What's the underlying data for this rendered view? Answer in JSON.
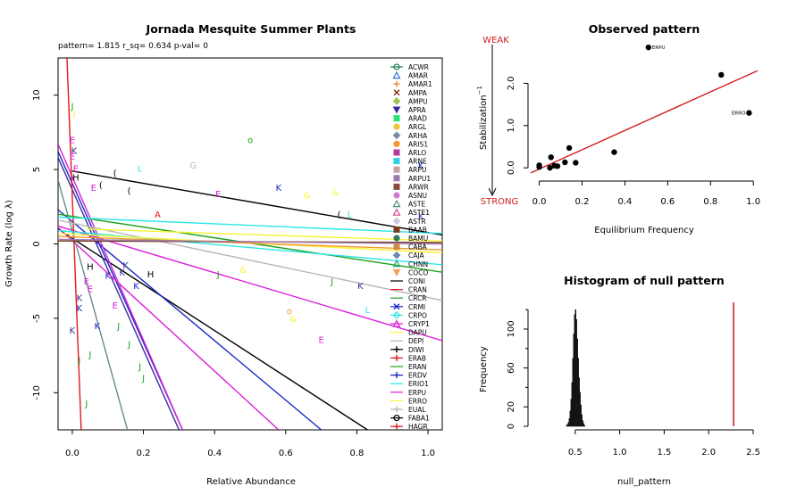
{
  "chart_data": [
    {
      "id": "main",
      "type": "scatter",
      "title": "Jornada Mesquite Summer Plants",
      "subtitle": "pattern= 1.815 r_sq= 0.634 p-val= 0",
      "xlabel": "Relative Abundance",
      "ylabel": "Growth Rate (log  λ)",
      "xlim": [
        -0.04,
        1.04
      ],
      "ylim": [
        -12.5,
        12.5
      ],
      "xticks": [
        "0.0",
        "0.2",
        "0.4",
        "0.6",
        "0.8",
        "1.0"
      ],
      "yticks": [
        "-10",
        "-5",
        "0",
        "5",
        "10"
      ],
      "legend": {
        "placement": "top-right",
        "entries": [
          {
            "label": "ACWR",
            "color": "#1b7a4b",
            "marker": "circle-line"
          },
          {
            "label": "AMAR",
            "color": "#2f6fd8",
            "marker": "triangle"
          },
          {
            "label": "AMAR1",
            "color": "#e8873a",
            "marker": "plus"
          },
          {
            "label": "AMPA",
            "color": "#8b2c10",
            "marker": "x"
          },
          {
            "label": "AMPU",
            "color": "#9cc64a",
            "marker": "diamond"
          },
          {
            "label": "APRA",
            "color": "#3c2a9a",
            "marker": "tri-down"
          },
          {
            "label": "ARAD",
            "color": "#29e07a",
            "marker": "square"
          },
          {
            "label": "ARGL",
            "color": "#f3c23c",
            "marker": "circle"
          },
          {
            "label": "ARHA",
            "color": "#7a8a9a",
            "marker": "diamond"
          },
          {
            "label": "ARIS1",
            "color": "#f29a2e",
            "marker": "circle"
          },
          {
            "label": "ARLO",
            "color": "#b93a9e",
            "marker": "square"
          },
          {
            "label": "ARNE",
            "color": "#2bd0e6",
            "marker": "square"
          },
          {
            "label": "ARPU",
            "color": "#c9a0a0",
            "marker": "square"
          },
          {
            "label": "ARPU1",
            "color": "#9a7ab0",
            "marker": "square"
          },
          {
            "label": "ARWR",
            "color": "#8b4b3a",
            "marker": "square"
          },
          {
            "label": "ASNU",
            "color": "#d77ad0",
            "marker": "circle"
          },
          {
            "label": "ASTE",
            "color": "#4a8c7a",
            "marker": "triangle"
          },
          {
            "label": "ASTE1",
            "color": "#d6488c",
            "marker": "triangle"
          },
          {
            "label": "ASTR",
            "color": "#cfc8e8",
            "marker": "diamond"
          },
          {
            "label": "BAAB",
            "color": "#7a3b1a",
            "marker": "square"
          },
          {
            "label": "BAMU",
            "color": "#2e7a5a",
            "marker": "circle"
          },
          {
            "label": "CABA",
            "color": "#d2874a",
            "marker": "square"
          },
          {
            "label": "CAJA",
            "color": "#6a8ab0",
            "marker": "diamond"
          },
          {
            "label": "CHNN",
            "color": "#2aa67a",
            "marker": "triangle"
          },
          {
            "label": "COCO",
            "color": "#f2a25a",
            "marker": "tri-down"
          },
          {
            "label": "CONI",
            "color": "#000000",
            "marker": "line"
          },
          {
            "label": "CRAN",
            "color": "#e0191a",
            "marker": "line"
          },
          {
            "label": "CRCR",
            "color": "#1aa01a",
            "marker": "line"
          },
          {
            "label": "CRMI",
            "color": "#1a28c8",
            "marker": "x-line"
          },
          {
            "label": "CRPO",
            "color": "#2ae6e6",
            "marker": "diamond-line"
          },
          {
            "label": "CRYP1",
            "color": "#d920d9",
            "marker": "tri-line"
          },
          {
            "label": "DAPU",
            "color": "#f5f53a",
            "marker": "line"
          },
          {
            "label": "DEPI",
            "color": "#b8b8b8",
            "marker": "line"
          },
          {
            "label": "DIWI",
            "color": "#000000",
            "marker": "plus-line"
          },
          {
            "label": "ERAB",
            "color": "#e0191a",
            "marker": "plus-line"
          },
          {
            "label": "ERAN",
            "color": "#1aa01a",
            "marker": "line"
          },
          {
            "label": "ERDV",
            "color": "#1a28c8",
            "marker": "plus-line"
          },
          {
            "label": "ERIO1",
            "color": "#2ae6e6",
            "marker": "line"
          },
          {
            "label": "ERPU",
            "color": "#d920d9",
            "marker": "line"
          },
          {
            "label": "ERRO",
            "color": "#f5f53a",
            "marker": "line"
          },
          {
            "label": "EUAL",
            "color": "#b8b8b8",
            "marker": "plus-line"
          },
          {
            "label": "FABA1",
            "color": "#000000",
            "marker": "circle-line"
          },
          {
            "label": "HAGR",
            "color": "#e0191a",
            "marker": "plus-line"
          }
        ]
      },
      "fit_lines": [
        {
          "color": "#000000",
          "points": [
            [
              0,
              4.9
            ],
            [
              1.04,
              0.6
            ]
          ]
        },
        {
          "color": "#000000",
          "points": [
            [
              -0.04,
              1.0
            ],
            [
              0.83,
              -12.5
            ]
          ]
        },
        {
          "color": "#1a28c8",
          "points": [
            [
              -0.04,
              2.3
            ],
            [
              0.7,
              -12.5
            ]
          ]
        },
        {
          "color": "#1a28c8",
          "points": [
            [
              -0.04,
              6.2
            ],
            [
              0.31,
              -12.5
            ]
          ]
        },
        {
          "color": "#3c2a9a",
          "points": [
            [
              -0.04,
              5.8
            ],
            [
              0.3,
              -12.5
            ]
          ]
        },
        {
          "color": "#d920d9",
          "points": [
            [
              -0.04,
              6.7
            ],
            [
              0.31,
              -12.5
            ]
          ]
        },
        {
          "color": "#d920d9",
          "points": [
            [
              -0.04,
              1.1
            ],
            [
              0.58,
              -12.5
            ]
          ]
        },
        {
          "color": "#d920d9",
          "points": [
            [
              -0.04,
              1.2
            ],
            [
              1.04,
              -6.5
            ]
          ]
        },
        {
          "color": "#e0191a",
          "points": [
            [
              -0.015,
              12.5
            ],
            [
              0.025,
              -12.5
            ]
          ]
        },
        {
          "color": "#6a8a8a",
          "points": [
            [
              -0.04,
              4.3
            ],
            [
              0.155,
              -12.5
            ]
          ]
        },
        {
          "color": "#b8b8b8",
          "points": [
            [
              -0.04,
              1.6
            ],
            [
              1.04,
              -3.8
            ]
          ]
        },
        {
          "color": "#1aa01a",
          "points": [
            [
              -0.04,
              2.0
            ],
            [
              1.04,
              -1.9
            ]
          ]
        },
        {
          "color": "#2ae6e6",
          "points": [
            [
              -0.04,
              1.8
            ],
            [
              1.04,
              0.7
            ]
          ]
        },
        {
          "color": "#2ae6e6",
          "points": [
            [
              -0.04,
              0.9
            ],
            [
              1.04,
              -1.4
            ]
          ]
        },
        {
          "color": "#f5f53a",
          "points": [
            [
              -0.04,
              0.7
            ],
            [
              1.04,
              -0.6
            ]
          ]
        },
        {
          "color": "#f29a2e",
          "points": [
            [
              -0.04,
              0.5
            ],
            [
              1.04,
              -0.4
            ]
          ]
        },
        {
          "color": "#7a3b1a",
          "points": [
            [
              -0.04,
              0.2
            ],
            [
              1.04,
              0.1
            ]
          ]
        },
        {
          "color": "#9a7ab0",
          "points": [
            [
              -0.04,
              0.3
            ],
            [
              1.04,
              0.0
            ]
          ]
        },
        {
          "color": "#f5f53a",
          "points": [
            [
              0.04,
              1.0
            ],
            [
              1.04,
              0.2
            ]
          ]
        }
      ],
      "points": [
        {
          "x": 0.0,
          "y": 9.3,
          "label": "J",
          "color": "#1aa01a"
        },
        {
          "x": 0.005,
          "y": 8.8,
          "label": "J",
          "color": "#f5f53a"
        },
        {
          "x": 0.0,
          "y": 7.0,
          "label": "E",
          "color": "#d920d9"
        },
        {
          "x": 0.005,
          "y": 6.3,
          "label": "K",
          "color": "#3c2a9a"
        },
        {
          "x": 0.0,
          "y": 5.9,
          "label": "E",
          "color": "#d920d9"
        },
        {
          "x": 0.01,
          "y": 5.1,
          "label": "E",
          "color": "#d920d9"
        },
        {
          "x": 0.01,
          "y": 4.5,
          "label": "H",
          "color": "#000000"
        },
        {
          "x": 0.06,
          "y": 3.8,
          "label": "E",
          "color": "#d920d9"
        },
        {
          "x": 0.08,
          "y": 4.0,
          "label": "(",
          "color": "#000000"
        },
        {
          "x": 0.12,
          "y": 4.8,
          "label": "(",
          "color": "#000000"
        },
        {
          "x": 0.16,
          "y": 3.6,
          "label": "(",
          "color": "#000000"
        },
        {
          "x": 0.19,
          "y": 5.1,
          "label": "L",
          "color": "#2ae6e6"
        },
        {
          "x": 0.34,
          "y": 5.3,
          "label": "G",
          "color": "#b8b8b8"
        },
        {
          "x": 0.41,
          "y": 3.4,
          "label": "E",
          "color": "#d920d9"
        },
        {
          "x": 0.58,
          "y": 3.8,
          "label": "K",
          "color": "#1a28c8"
        },
        {
          "x": 0.5,
          "y": 7.0,
          "label": "o",
          "color": "#1aa01a"
        },
        {
          "x": 0.66,
          "y": 3.3,
          "label": "&",
          "color": "#f5f53a"
        },
        {
          "x": 0.74,
          "y": 3.5,
          "label": "&",
          "color": "#f5f53a"
        },
        {
          "x": 0.24,
          "y": 2.0,
          "label": "A",
          "color": "#e0191a"
        },
        {
          "x": 0.75,
          "y": 2.0,
          "label": "(",
          "color": "#000000"
        },
        {
          "x": 0.78,
          "y": 2.0,
          "label": "L",
          "color": "#2ae6e6"
        },
        {
          "x": 0.98,
          "y": 5.3,
          "label": "K",
          "color": "#1a28c8"
        },
        {
          "x": 0.98,
          "y": 1.9,
          "label": "K",
          "color": "#1a28c8"
        },
        {
          "x": 0.15,
          "y": -1.4,
          "label": "K",
          "color": "#3c2a9a"
        },
        {
          "x": 0.22,
          "y": -2.0,
          "label": "H",
          "color": "#000000"
        },
        {
          "x": 0.05,
          "y": -1.5,
          "label": "H",
          "color": "#000000"
        },
        {
          "x": 0.04,
          "y": -2.5,
          "label": "E",
          "color": "#d920d9"
        },
        {
          "x": 0.1,
          "y": -2.1,
          "label": "K",
          "color": "#1a28c8"
        },
        {
          "x": 0.14,
          "y": -1.9,
          "label": "K",
          "color": "#3c2a9a"
        },
        {
          "x": 0.18,
          "y": -2.8,
          "label": "K",
          "color": "#1a28c8"
        },
        {
          "x": 0.12,
          "y": -4.1,
          "label": "E",
          "color": "#d920d9"
        },
        {
          "x": 0.05,
          "y": -3.0,
          "label": "E",
          "color": "#d920d9"
        },
        {
          "x": 0.02,
          "y": -4.3,
          "label": "K",
          "color": "#1a28c8"
        },
        {
          "x": 0.0,
          "y": -5.8,
          "label": "K",
          "color": "#3c2a9a"
        },
        {
          "x": 0.07,
          "y": -5.5,
          "label": "K",
          "color": "#1a28c8"
        },
        {
          "x": 0.41,
          "y": -2.0,
          "label": "J",
          "color": "#1aa01a"
        },
        {
          "x": 0.73,
          "y": -2.5,
          "label": "J",
          "color": "#1aa01a"
        },
        {
          "x": 0.81,
          "y": -2.8,
          "label": "K",
          "color": "#3c2a9a"
        },
        {
          "x": 0.83,
          "y": -4.4,
          "label": "L",
          "color": "#2ae6e6"
        },
        {
          "x": 0.7,
          "y": -6.4,
          "label": "E",
          "color": "#d920d9"
        },
        {
          "x": 0.61,
          "y": -4.5,
          "label": "o",
          "color": "#f29a2e"
        },
        {
          "x": 0.62,
          "y": -5.0,
          "label": "&",
          "color": "#f5f53a"
        },
        {
          "x": 0.48,
          "y": -1.7,
          "label": "&",
          "color": "#f5f53a"
        },
        {
          "x": 0.16,
          "y": -6.7,
          "label": "J",
          "color": "#1aa01a"
        },
        {
          "x": 0.19,
          "y": -8.2,
          "label": "J",
          "color": "#1aa01a"
        },
        {
          "x": 0.05,
          "y": -7.4,
          "label": "J",
          "color": "#1aa01a"
        },
        {
          "x": 0.04,
          "y": -10.7,
          "label": "J",
          "color": "#1aa01a"
        },
        {
          "x": 0.13,
          "y": -5.5,
          "label": "J",
          "color": "#1aa01a"
        },
        {
          "x": 0.02,
          "y": -7.8,
          "label": "J",
          "color": "#1aa01a"
        },
        {
          "x": 0.2,
          "y": -9.0,
          "label": "J",
          "color": "#1aa01a"
        },
        {
          "x": 0.02,
          "y": -3.6,
          "label": "K",
          "color": "#3c2a9a"
        }
      ]
    },
    {
      "id": "observed",
      "type": "scatter",
      "title": "Observed pattern",
      "xlabel": "Equilibrium Frequency",
      "ylabel": "Stabilization",
      "ylabel_sup": "−1",
      "xlim": [
        -0.04,
        1.02
      ],
      "ylim": [
        -0.25,
        2.6
      ],
      "xticks": [
        "0.0",
        "0.2",
        "0.4",
        "0.6",
        "0.8",
        "1.0"
      ],
      "yticks": [
        "0.0",
        "1.0",
        "2.0"
      ],
      "weak_label": "WEAK",
      "strong_label": "STRONG",
      "fit_line": {
        "color": "#d01c1c",
        "points": [
          [
            -0.04,
            -0.12
          ],
          [
            1.02,
            2.3
          ]
        ]
      },
      "points": [
        {
          "x": 0.0,
          "y": 0.02
        },
        {
          "x": 0.0,
          "y": 0.06
        },
        {
          "x": 0.05,
          "y": 0.0
        },
        {
          "x": 0.055,
          "y": 0.25
        },
        {
          "x": 0.07,
          "y": 0.05
        },
        {
          "x": 0.085,
          "y": 0.04
        },
        {
          "x": 0.12,
          "y": 0.13
        },
        {
          "x": 0.14,
          "y": 0.47
        },
        {
          "x": 0.17,
          "y": 0.12
        },
        {
          "x": 0.35,
          "y": 0.37
        },
        {
          "x": 0.51,
          "y": 2.85,
          "label": "ERPU"
        },
        {
          "x": 0.85,
          "y": 2.2
        },
        {
          "x": 0.98,
          "y": 1.3,
          "label": "ERRO"
        }
      ]
    },
    {
      "id": "null",
      "type": "bar",
      "title": "Histogram of null pattern",
      "xlabel": "null_pattern",
      "ylabel": "Frequency",
      "xlim": [
        0.0,
        2.55
      ],
      "ylim": [
        0,
        122
      ],
      "xticks": [
        "0.5",
        "1.0",
        "1.5",
        "2.0",
        "2.5"
      ],
      "yticks": [
        "0",
        "20",
        "60",
        "100"
      ],
      "bin_width": 0.01,
      "bins_start": 0.4,
      "values": [
        1,
        2,
        4,
        8,
        16,
        28,
        45,
        70,
        95,
        115,
        120,
        110,
        90,
        70,
        50,
        35,
        22,
        12,
        6,
        3,
        1
      ],
      "observed_value": 2.28,
      "observed_color": "#d01c1c"
    }
  ]
}
